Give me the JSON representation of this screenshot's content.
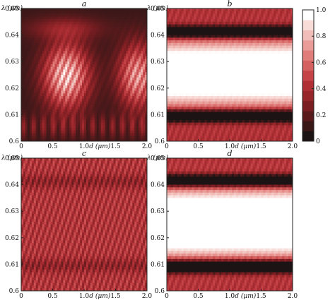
{
  "chart_data": {
    "type": "heatmap",
    "panels": [
      {
        "id": "a",
        "letter": "a",
        "ylabel": "λ (μm)",
        "xlabel": "d (μm)",
        "x_range": [
          0,
          2.0
        ],
        "y_range": [
          0.6,
          0.65
        ],
        "x_ticks": [
          "0",
          "0.5",
          "1.0",
          "1.5",
          "2.0"
        ],
        "y_ticks": [
          "0.6",
          "0.61",
          "0.62",
          "0.63",
          "0.64",
          "0.65"
        ],
        "pattern": "two bright lobes near d = 0.7 and d = 1.8, dark background"
      },
      {
        "id": "b",
        "letter": "b",
        "ylabel": "λ (μm)",
        "xlabel": "d (μm)",
        "x_range": [
          0,
          2.0
        ],
        "y_range": [
          0.6,
          0.65
        ],
        "x_ticks": [
          "0",
          "0.5",
          "1.0",
          "1.5",
          "2.0"
        ],
        "y_ticks": [
          "0.6",
          "0.61",
          "0.62",
          "0.63",
          "0.64",
          "0.65"
        ],
        "pattern": "bright band between λ ≈ 0.613 and 0.638 μm, dark bands near 0.609 and 0.641 μm"
      },
      {
        "id": "c",
        "letter": "c",
        "ylabel": "λ (μm)",
        "xlabel": "d (μm)",
        "x_range": [
          0,
          2.0
        ],
        "y_range": [
          0.6,
          0.65
        ],
        "x_ticks": [
          "0",
          "0.5",
          "1.0",
          "1.5",
          "2.0"
        ],
        "y_ticks": [
          "0.6",
          "0.61",
          "0.62",
          "0.63",
          "0.64",
          "0.65"
        ],
        "pattern": "uniform mid-level red with dense slanted stripes"
      },
      {
        "id": "d",
        "letter": "d",
        "ylabel": "λ (μm)",
        "xlabel": "d (μm)",
        "x_range": [
          0,
          2.0
        ],
        "y_range": [
          0.6,
          0.65
        ],
        "x_ticks": [
          "0",
          "0.5",
          "1.0",
          "1.5",
          "2.0"
        ],
        "y_ticks": [
          "0.6",
          "0.61",
          "0.62",
          "0.63",
          "0.64",
          "0.65"
        ],
        "pattern": "bright band between λ ≈ 0.613 and 0.638 μm, dark bands near 0.609 and 0.641 μm"
      }
    ],
    "colorbar": {
      "range": [
        0,
        1.0
      ],
      "ticks": [
        "0",
        "0.2",
        "0.4",
        "0.6",
        "0.8",
        "1.0"
      ],
      "colors": [
        "#1c1414",
        "#3a1818",
        "#5a1a1c",
        "#7a1e22",
        "#97262a",
        "#b03036",
        "#c44448",
        "#d4605f",
        "#e07c7a",
        "#e99c98",
        "#f1bdb8",
        "#f8dcd8",
        "#ffffff"
      ]
    }
  }
}
